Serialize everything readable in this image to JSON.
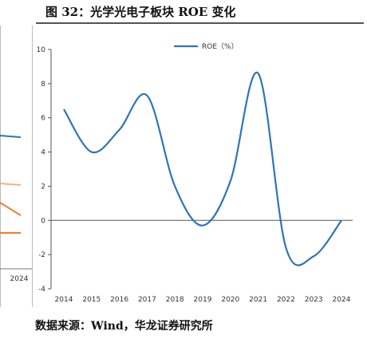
{
  "figure": {
    "title": "图 32：光学光电子板块 ROE 变化",
    "source": "数据来源：Wind，华龙证券研究所"
  },
  "left_panel": {
    "x_tick_label": "2024",
    "line_colors": [
      "#2e75b6",
      "#f4b183",
      "#ed7d31",
      "#ed7d31"
    ]
  },
  "chart_data": {
    "type": "line",
    "title": "",
    "xlabel": "",
    "ylabel": "",
    "x": [
      "2014",
      "2015",
      "2016",
      "2017",
      "2018",
      "2019",
      "2020",
      "2021",
      "2022",
      "2023",
      "2024"
    ],
    "series": [
      {
        "name": "ROE（%）",
        "color": "#2e75b6",
        "values": [
          6.5,
          4.0,
          5.3,
          7.3,
          2.0,
          -0.3,
          2.3,
          8.6,
          -1.6,
          -2.1,
          0.0
        ]
      }
    ],
    "ylim": [
      -4,
      10
    ],
    "yticks": [
      -4,
      -2,
      0,
      2,
      4,
      6,
      8,
      10
    ],
    "grid": false,
    "legend": "top-center"
  }
}
